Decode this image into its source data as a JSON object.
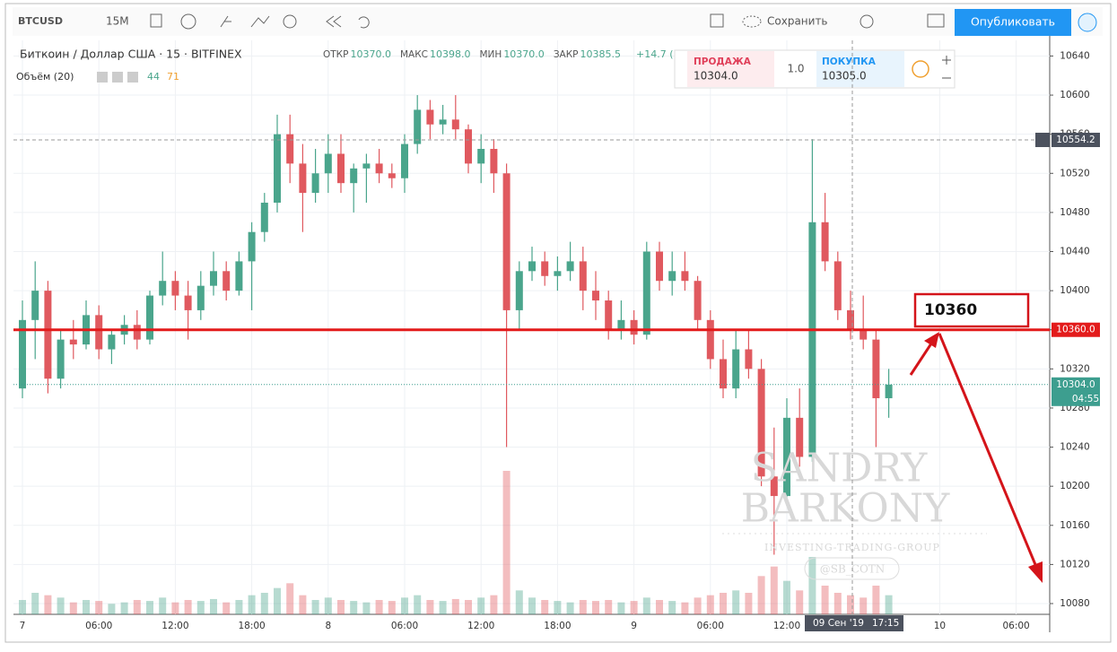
{
  "toolbar": {
    "symbol": "BTCUSD",
    "interval": "15М",
    "save": "Сохранить",
    "publish": "Опубликовать"
  },
  "legend": {
    "title": "Биткоин / Доллар США · 15 · BITFINEX",
    "fields": [
      {
        "name": "ОТКР",
        "value": "10370.0"
      },
      {
        "name": "МАКС",
        "value": "10398.0"
      },
      {
        "name": "МИН",
        "value": "10370.0"
      },
      {
        "name": "ЗАКР",
        "value": "10385.5"
      }
    ],
    "change": "+14.7 (",
    "volume_title": "Объём (20)",
    "volume_values": [
      "44",
      "71"
    ]
  },
  "trade": {
    "sell_label": "ПРОДАЖА",
    "sell": "10304.0",
    "spread": "1.0",
    "buy_label": "ПОКУПКА",
    "buy": "10305.0"
  },
  "watermark": {
    "line1": "SANDRY",
    "line2": "BARKONY",
    "line3": "INVESTING-TRADING-GROUP",
    "handle": "@SB_COTN"
  },
  "chart_data": {
    "type": "candlestick",
    "categories": [
      "7",
      null,
      null,
      null,
      null,
      null,
      "06:00",
      null,
      null,
      null,
      null,
      null,
      "12:00",
      null,
      null,
      null,
      null,
      null,
      "18:00",
      null,
      null,
      null,
      null,
      null,
      "8",
      null,
      null,
      null,
      null,
      null,
      "06:00",
      null,
      null,
      null,
      null,
      null,
      "12:00",
      null,
      null,
      null,
      null,
      null,
      "18:00",
      null,
      null,
      null,
      null,
      null,
      "9",
      null,
      null,
      null,
      null,
      null,
      "06:00",
      null,
      null,
      null,
      null,
      null,
      "12:00",
      null,
      null,
      null,
      null,
      null,
      null,
      null,
      null,
      null,
      null,
      null,
      "10",
      null,
      null,
      null,
      null,
      null,
      "06:00",
      null,
      null
    ],
    "open": [
      10300,
      10370,
      10400,
      10310,
      10350,
      10345,
      10375,
      10340,
      10355,
      10365,
      10350,
      10395,
      10410,
      10395,
      10380,
      10405,
      10420,
      10400,
      10430,
      10460,
      10490,
      10560,
      10530,
      10500,
      10520,
      10540,
      10510,
      10525,
      10530,
      10520,
      10515,
      10550,
      10585,
      10570,
      10575,
      10565,
      10530,
      10545,
      10520,
      10380,
      10420,
      10430,
      10415,
      10420,
      10430,
      10400,
      10390,
      10360,
      10370,
      10355,
      10440,
      10410,
      10420,
      10410,
      10370,
      10330,
      10300,
      10340,
      10320,
      10210,
      10190,
      10270,
      10230,
      10470,
      10430,
      10380,
      10360,
      10350,
      10290,
      null,
      null,
      null,
      null,
      null,
      null,
      null,
      null,
      null,
      null,
      null,
      null
    ],
    "high": [
      10390,
      10430,
      10410,
      10360,
      10370,
      10390,
      10385,
      10360,
      10375,
      10380,
      10400,
      10440,
      10420,
      10410,
      10420,
      10440,
      10430,
      10440,
      10470,
      10500,
      10580,
      10580,
      10550,
      10545,
      10560,
      10560,
      10530,
      10540,
      10545,
      10530,
      10560,
      10600,
      10595,
      10590,
      10600,
      10570,
      10560,
      10555,
      10530,
      10430,
      10445,
      10440,
      10435,
      10450,
      10445,
      10420,
      10400,
      10390,
      10380,
      10450,
      10450,
      10440,
      10440,
      10415,
      10380,
      10350,
      10360,
      10360,
      10330,
      10260,
      10290,
      10300,
      10555,
      10500,
      10440,
      10400,
      10395,
      10360,
      10320,
      null,
      null,
      null,
      null,
      null,
      null,
      null,
      null,
      null,
      null,
      null,
      null
    ],
    "low": [
      10290,
      10330,
      10295,
      10300,
      10330,
      10340,
      10330,
      10325,
      10345,
      10340,
      10345,
      10385,
      10380,
      10350,
      10370,
      10395,
      10390,
      10395,
      10380,
      10450,
      10480,
      10510,
      10460,
      10490,
      10500,
      10500,
      10480,
      10490,
      10510,
      10505,
      10500,
      10540,
      10555,
      10560,
      10555,
      10520,
      10510,
      10500,
      10240,
      10360,
      10410,
      10405,
      10400,
      10410,
      10380,
      10370,
      10350,
      10350,
      10345,
      10350,
      10400,
      10395,
      10400,
      10360,
      10320,
      10290,
      10290,
      10310,
      10200,
      10130,
      10180,
      10220,
      10225,
      10420,
      10370,
      10350,
      10340,
      10240,
      10270,
      null,
      null,
      null,
      null,
      null,
      null,
      null,
      null,
      null,
      null,
      null,
      null
    ],
    "close": [
      10370,
      10400,
      10310,
      10350,
      10345,
      10375,
      10340,
      10355,
      10365,
      10350,
      10395,
      10410,
      10395,
      10380,
      10405,
      10420,
      10400,
      10430,
      10460,
      10490,
      10560,
      10530,
      10500,
      10520,
      10540,
      10510,
      10525,
      10530,
      10520,
      10515,
      10550,
      10585,
      10570,
      10575,
      10565,
      10530,
      10545,
      10520,
      10380,
      10420,
      10430,
      10415,
      10420,
      10430,
      10400,
      10390,
      10360,
      10370,
      10355,
      10440,
      10410,
      10420,
      10410,
      10370,
      10330,
      10300,
      10340,
      10320,
      10210,
      10190,
      10270,
      10230,
      10470,
      10430,
      10380,
      10360,
      10350,
      10290,
      10304,
      null,
      null,
      null,
      null,
      null,
      null,
      null,
      null,
      null,
      null,
      null,
      null
    ],
    "volume": [
      30,
      45,
      40,
      35,
      25,
      30,
      28,
      22,
      25,
      30,
      28,
      35,
      25,
      30,
      28,
      32,
      25,
      30,
      40,
      45,
      55,
      65,
      40,
      30,
      35,
      30,
      28,
      25,
      30,
      28,
      35,
      40,
      30,
      28,
      32,
      30,
      35,
      40,
      300,
      50,
      35,
      30,
      28,
      25,
      30,
      28,
      30,
      25,
      28,
      35,
      30,
      28,
      25,
      35,
      40,
      45,
      50,
      45,
      80,
      100,
      70,
      50,
      120,
      60,
      45,
      40,
      35,
      60,
      40,
      null,
      null,
      null,
      null,
      null,
      null,
      null,
      null,
      null,
      null,
      null,
      null
    ],
    "up_color": "#4aa58c",
    "down_color": "#e0595f",
    "ylim": [
      10069,
      10656
    ],
    "yticks": [
      10080,
      10120,
      10160,
      10200,
      10240,
      10280,
      10320,
      10360,
      10400,
      10440,
      10480,
      10520,
      10560,
      10600,
      10640
    ],
    "grid": true,
    "level": {
      "value": 10360,
      "label": "10360.0",
      "color": "#e31b1b"
    },
    "annotation": 10360,
    "last": {
      "value": 10304,
      "label": "10304.0",
      "countdown": "04:55",
      "color": "#3d9e8f"
    },
    "crosshair": {
      "value": 10554.2,
      "date": "09 Сен '19",
      "time": "17:15"
    }
  }
}
